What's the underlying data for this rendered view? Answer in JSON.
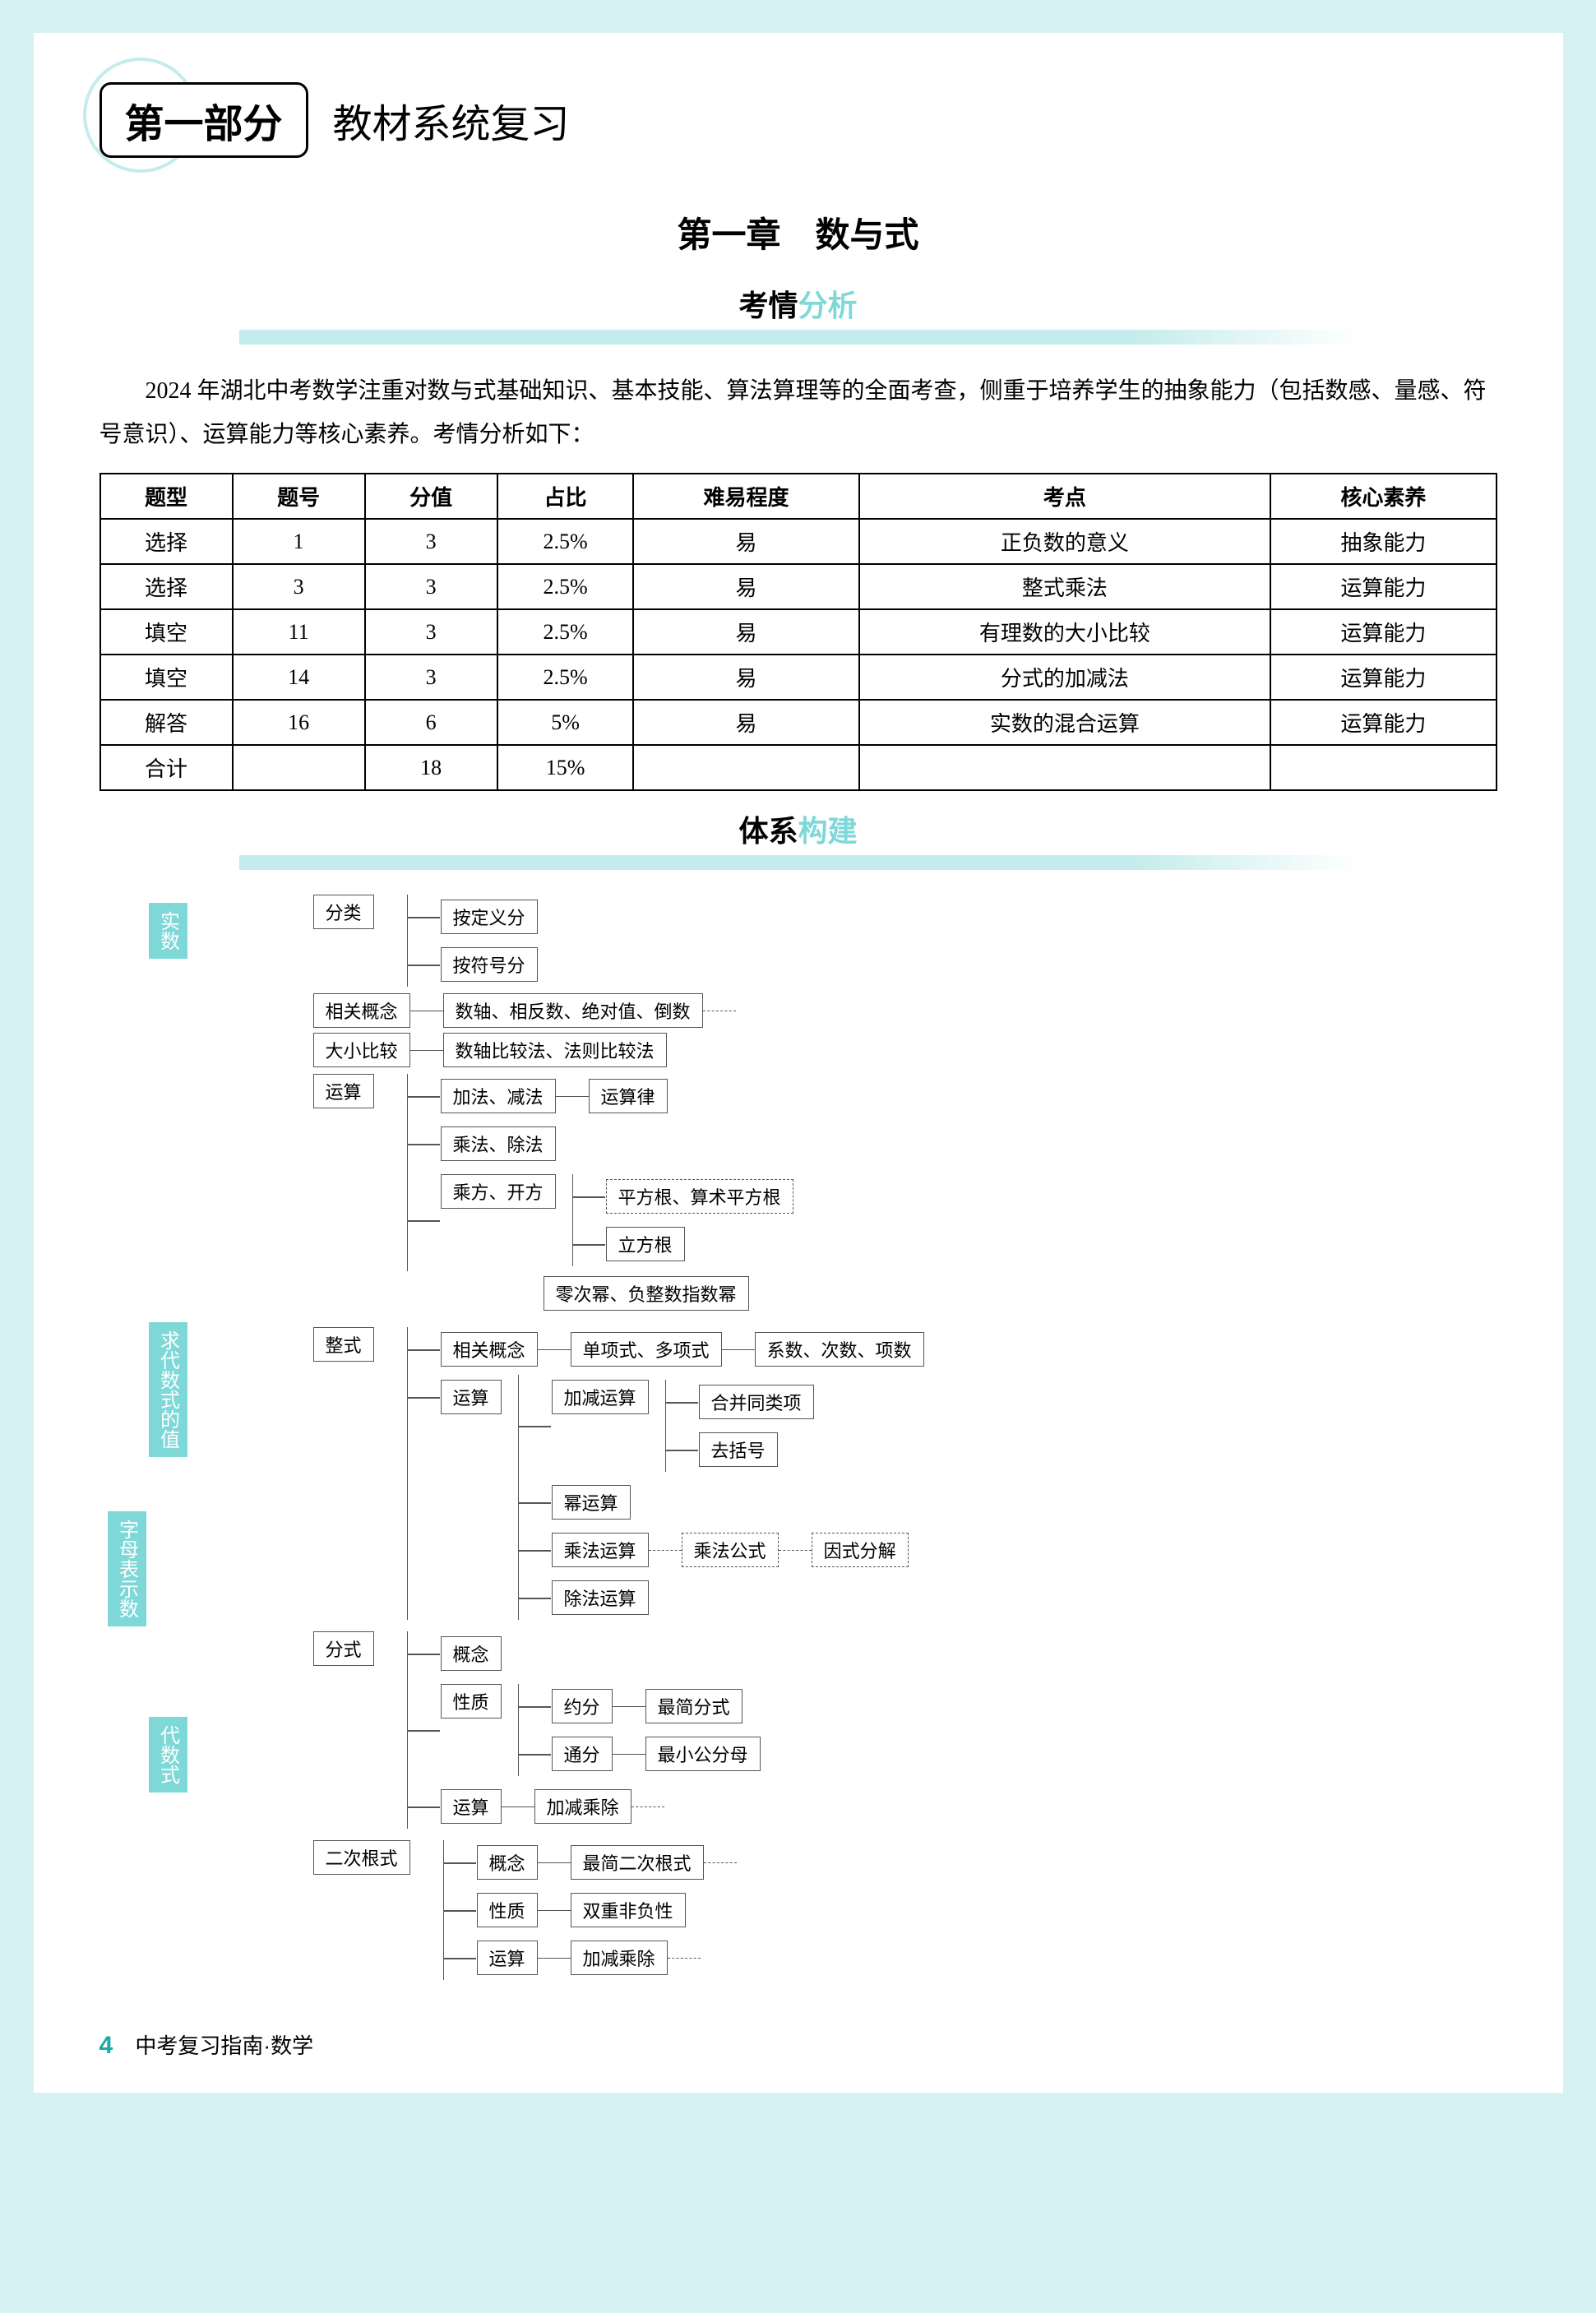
{
  "header": {
    "part_badge": "第一部分",
    "part_title": "教材系统复习",
    "chapter_title": "第一章　数与式",
    "section1_bold": "考情",
    "section1_accent": "分析",
    "section2_bold": "体系",
    "section2_accent": "构建"
  },
  "intro_text": "2024 年湖北中考数学注重对数与式基础知识、基本技能、算法算理等的全面考查，侧重于培养学生的抽象能力（包括数感、量感、符号意识）、运算能力等核心素养。考情分析如下：",
  "table": {
    "columns": [
      "题型",
      "题号",
      "分值",
      "占比",
      "难易程度",
      "考点",
      "核心素养"
    ],
    "rows": [
      [
        "选择",
        "1",
        "3",
        "2.5%",
        "易",
        "正负数的意义",
        "抽象能力"
      ],
      [
        "选择",
        "3",
        "3",
        "2.5%",
        "易",
        "整式乘法",
        "运算能力"
      ],
      [
        "填空",
        "11",
        "3",
        "2.5%",
        "易",
        "有理数的大小比较",
        "运算能力"
      ],
      [
        "填空",
        "14",
        "3",
        "2.5%",
        "易",
        "分式的加减法",
        "运算能力"
      ],
      [
        "解答",
        "16",
        "6",
        "5%",
        "易",
        "实数的混合运算",
        "运算能力"
      ],
      [
        "合计",
        "",
        "18",
        "15%",
        "",
        "",
        ""
      ]
    ],
    "border_color": "#000000",
    "font_size": 26
  },
  "diagram": {
    "vtabs": {
      "left_outer": "字母表示数",
      "t1": "实数",
      "t_mid": "求代数式的值",
      "t2": "代数式"
    },
    "vtab_bg": "#7fd8d8",
    "node_border": "#555555",
    "font_size": 22,
    "shishu": {
      "fenlei": {
        "label": "分类",
        "children": [
          "按定义分",
          "按符号分"
        ]
      },
      "gainian": {
        "label": "相关概念",
        "leaf": "数轴、相反数、绝对值、倒数"
      },
      "bijiao": {
        "label": "大小比较",
        "leaf": "数轴比较法、法则比较法"
      },
      "yunsuan": {
        "label": "运算",
        "rows": [
          {
            "op": "加法、减法",
            "right": "运算律"
          },
          {
            "op": "乘法、除法",
            "right": ""
          },
          {
            "op": "乘方、开方",
            "rights": [
              "平方根、算术平方根",
              "立方根"
            ]
          }
        ],
        "footer": "零次幂、负整数指数幂"
      }
    },
    "daishushi": {
      "zhengshi": {
        "label": "整式",
        "gainian": {
          "label": "相关概念",
          "leaf": "单项式、多项式",
          "right": "系数、次数、项数"
        },
        "yunsuan": {
          "label": "运算",
          "rows": [
            {
              "op": "加减运算",
              "rights": [
                "合并同类项",
                "去括号"
              ]
            },
            {
              "op": "幂运算"
            },
            {
              "op": "乘法运算",
              "rights_dash": [
                "乘法公式"
              ],
              "extra": "因式分解"
            },
            {
              "op": "除法运算"
            }
          ]
        }
      },
      "fenshi": {
        "label": "分式",
        "rows": [
          {
            "op": "概念"
          },
          {
            "op": "性质",
            "subs": [
              {
                "k": "约分",
                "r": "最简分式"
              },
              {
                "k": "通分",
                "r": "最小公分母"
              }
            ]
          },
          {
            "op": "运算",
            "right": "加减乘除"
          }
        ]
      },
      "genshi": {
        "label": "二次根式",
        "rows": [
          {
            "op": "概念",
            "right": "最简二次根式"
          },
          {
            "op": "性质",
            "right": "双重非负性"
          },
          {
            "op": "运算",
            "right": "加减乘除"
          }
        ]
      }
    }
  },
  "footer": {
    "page_number": "4",
    "book_title": "中考复习指南·数学"
  },
  "colors": {
    "page_bg": "#ffffff",
    "outer_bg": "#d6f2f2",
    "accent": "#7fd8d8",
    "circle": "#c5ecec",
    "band": "#c5ecec",
    "text": "#000000"
  }
}
